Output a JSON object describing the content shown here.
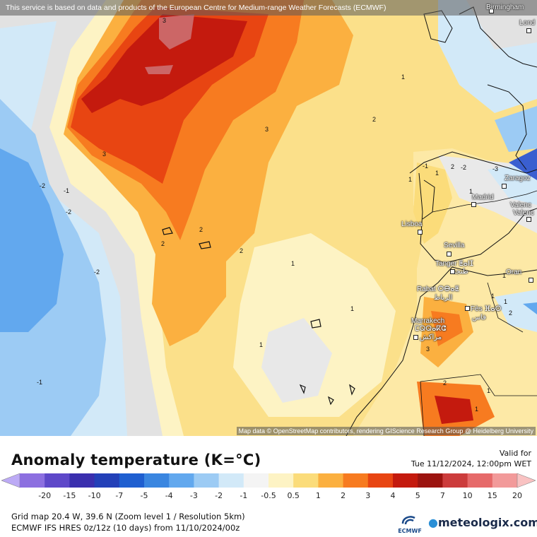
{
  "notice": "This service is based on data and products of the European Centre for Medium-range Weather Forecasts (ECMWF)",
  "attribution": "Map data © OpenStreetMap contributors, rendering GIScience Research Group @ Heidelberg University",
  "cities": [
    {
      "name": "Birmingham"
    },
    {
      "name": "Lond"
    },
    {
      "name": "Lisboa"
    },
    {
      "name": "Madrid"
    },
    {
      "name": "Zaragoz"
    },
    {
      "name": "Valenc"
    },
    {
      "name": "Valenc"
    },
    {
      "name": "Sevilla"
    },
    {
      "name": "Tanger ⵟⴰⵏⵊ"
    },
    {
      "name": "طنجة"
    },
    {
      "name": "Rabat ⵔⴱⴰⵟ"
    },
    {
      "name": "الرباط"
    },
    {
      "name": "Fès ⴼⴰⵙ"
    },
    {
      "name": "فاس"
    },
    {
      "name": "Marrakech"
    },
    {
      "name": "ⵎⵕⵕⴰⴽⵛ"
    },
    {
      "name": "مراكش"
    },
    {
      "name": "Oran"
    }
  ],
  "contour_labels": [
    "3",
    "3",
    "3",
    "2",
    "1",
    "2",
    "2",
    "2",
    "-2",
    "-1",
    "-2",
    "-2",
    "2",
    "1",
    "1",
    "1",
    "-1",
    "1",
    "2",
    "1",
    "-1",
    "-2",
    "-3",
    "1",
    "1",
    "3",
    "2",
    "1",
    "1",
    "1",
    "1"
  ],
  "legend": {
    "title": "Anomaly temperature (K=°C)",
    "valid_label": "Valid for",
    "valid_time": "Tue 11/12/2024, 12:00pm WET",
    "ticks": [
      "-20",
      "-15",
      "-10",
      "-7",
      "-5",
      "-4",
      "-3",
      "-2",
      "-1",
      "-0.5",
      "0.5",
      "1",
      "2",
      "3",
      "4",
      "5",
      "7",
      "10",
      "15",
      "20"
    ],
    "colors": [
      "#bcaaf5",
      "#8c6fe0",
      "#5e48c9",
      "#3a2fae",
      "#2340b8",
      "#1f5fd0",
      "#3a86e0",
      "#62a8ee",
      "#9ccbf4",
      "#d2e9f8",
      "#f4f4f4",
      "#fdf3c4",
      "#fbdc7a",
      "#fbb040",
      "#f77b20",
      "#e84512",
      "#c41a0e",
      "#9c1410",
      "#cc3c3c",
      "#e66a6a",
      "#f29a9a",
      "#f9c2c2"
    ]
  },
  "info": {
    "line1": "Grid map 20.4 W, 39.6 N (Zoom level 1 / Resolution 5km)",
    "line2": "ECMWF IFS HRES 0z/12z (10 days) from 11/10/2024/00z"
  },
  "branding": {
    "ecmwf": "ECMWF",
    "name_a": "meteologix",
    "name_b": ".com"
  }
}
